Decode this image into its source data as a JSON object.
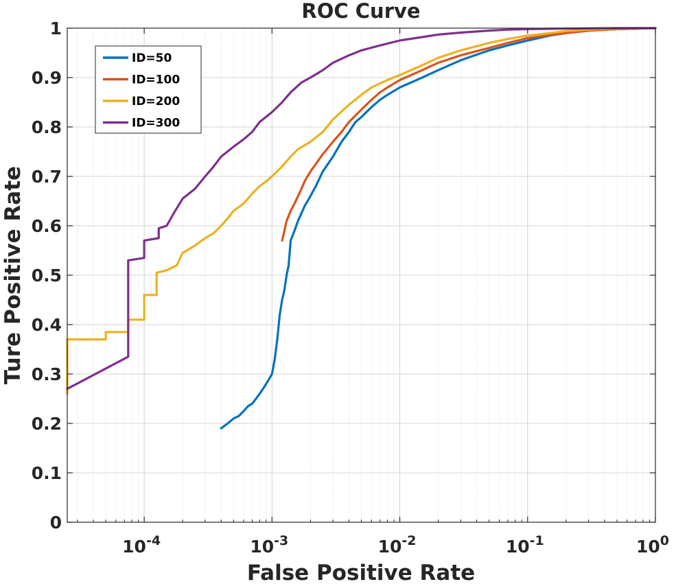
{
  "chart_data": {
    "type": "line",
    "title": "ROC Curve",
    "xlabel": "False Positive Rate",
    "ylabel": "Ture Positive Rate",
    "xscale": "log",
    "xlim": [
      2.5e-05,
      1
    ],
    "ylim": [
      0,
      1
    ],
    "grid": true,
    "minor_grid": true,
    "legend_position": "top-left",
    "x_ticks": [
      {
        "value": 0.0001,
        "base": "10",
        "exp": "-4"
      },
      {
        "value": 0.001,
        "base": "10",
        "exp": "-3"
      },
      {
        "value": 0.01,
        "base": "10",
        "exp": "-2"
      },
      {
        "value": 0.1,
        "base": "10",
        "exp": "-1"
      },
      {
        "value": 1,
        "base": "10",
        "exp": "0"
      }
    ],
    "y_ticks": [
      {
        "value": 0,
        "label": "0"
      },
      {
        "value": 0.1,
        "label": "0.1"
      },
      {
        "value": 0.2,
        "label": "0.2"
      },
      {
        "value": 0.3,
        "label": "0.3"
      },
      {
        "value": 0.4,
        "label": "0.4"
      },
      {
        "value": 0.5,
        "label": "0.5"
      },
      {
        "value": 0.6,
        "label": "0.6"
      },
      {
        "value": 0.7,
        "label": "0.7"
      },
      {
        "value": 0.8,
        "label": "0.8"
      },
      {
        "value": 0.9,
        "label": "0.9"
      },
      {
        "value": 1,
        "label": "1"
      }
    ],
    "series": [
      {
        "name": "ID=50",
        "color": "#0072BD",
        "x": [
          0.0004,
          0.00045,
          0.0005,
          0.00055,
          0.0006,
          0.00065,
          0.0007,
          0.00075,
          0.0008,
          0.00085,
          0.0009,
          0.00095,
          0.001,
          0.00105,
          0.0011,
          0.00115,
          0.0012,
          0.00125,
          0.0013,
          0.00135,
          0.0014,
          0.0015,
          0.0016,
          0.0018,
          0.002,
          0.0022,
          0.0025,
          0.003,
          0.0035,
          0.004,
          0.0045,
          0.005,
          0.006,
          0.007,
          0.008,
          0.01,
          0.015,
          0.02,
          0.03,
          0.05,
          0.07,
          0.1,
          0.15,
          0.2,
          0.3,
          0.5,
          0.7,
          1
        ],
        "y": [
          0.19,
          0.2,
          0.21,
          0.215,
          0.225,
          0.235,
          0.24,
          0.25,
          0.26,
          0.27,
          0.28,
          0.29,
          0.3,
          0.33,
          0.37,
          0.42,
          0.45,
          0.47,
          0.5,
          0.52,
          0.57,
          0.59,
          0.61,
          0.64,
          0.66,
          0.68,
          0.71,
          0.74,
          0.77,
          0.79,
          0.81,
          0.82,
          0.84,
          0.855,
          0.865,
          0.88,
          0.9,
          0.915,
          0.935,
          0.955,
          0.965,
          0.975,
          0.985,
          0.99,
          0.995,
          0.998,
          0.999,
          1.0
        ]
      },
      {
        "name": "ID=100",
        "color": "#D95319",
        "x": [
          0.0012,
          0.00125,
          0.0013,
          0.0014,
          0.0015,
          0.0016,
          0.0017,
          0.0018,
          0.002,
          0.0022,
          0.0025,
          0.003,
          0.0035,
          0.004,
          0.005,
          0.006,
          0.007,
          0.008,
          0.01,
          0.015,
          0.02,
          0.03,
          0.05,
          0.07,
          0.1,
          0.15,
          0.2,
          0.3,
          0.5,
          0.7,
          1
        ],
        "y": [
          0.57,
          0.59,
          0.61,
          0.63,
          0.645,
          0.66,
          0.675,
          0.69,
          0.71,
          0.725,
          0.745,
          0.77,
          0.79,
          0.81,
          0.835,
          0.855,
          0.87,
          0.88,
          0.895,
          0.915,
          0.93,
          0.945,
          0.96,
          0.97,
          0.98,
          0.986,
          0.99,
          0.995,
          0.998,
          0.999,
          1.0
        ]
      },
      {
        "name": "ID=200",
        "color": "#EDB120",
        "x": [
          2.5e-05,
          2.5e-05,
          5e-05,
          5e-05,
          7.5e-05,
          7.5e-05,
          0.0001,
          0.0001,
          0.000125,
          0.000125,
          0.00015,
          0.00018,
          0.0002,
          0.00025,
          0.0003,
          0.00035,
          0.0004,
          0.00045,
          0.0005,
          0.0006,
          0.0007,
          0.0008,
          0.0009,
          0.001,
          0.0012,
          0.0014,
          0.0016,
          0.002,
          0.0025,
          0.003,
          0.004,
          0.005,
          0.006,
          0.008,
          0.01,
          0.015,
          0.02,
          0.03,
          0.05,
          0.07,
          0.1,
          0.15,
          0.2,
          0.3,
          0.5,
          0.7,
          1
        ],
        "y": [
          0.26,
          0.37,
          0.37,
          0.385,
          0.385,
          0.41,
          0.41,
          0.46,
          0.46,
          0.505,
          0.51,
          0.52,
          0.545,
          0.56,
          0.575,
          0.585,
          0.6,
          0.615,
          0.63,
          0.645,
          0.665,
          0.68,
          0.69,
          0.7,
          0.72,
          0.74,
          0.755,
          0.77,
          0.79,
          0.815,
          0.845,
          0.865,
          0.88,
          0.895,
          0.905,
          0.925,
          0.94,
          0.955,
          0.97,
          0.978,
          0.985,
          0.99,
          0.994,
          0.997,
          0.999,
          1.0,
          1.0
        ]
      },
      {
        "name": "ID=300",
        "color": "#7E2F8E",
        "x": [
          2.5e-05,
          7.5e-05,
          7.5e-05,
          0.0001,
          0.0001,
          0.00013,
          0.00013,
          0.00015,
          0.00017,
          0.0002,
          0.00025,
          0.0003,
          0.00035,
          0.0004,
          0.0005,
          0.0006,
          0.0007,
          0.0008,
          0.001,
          0.0012,
          0.0014,
          0.0017,
          0.002,
          0.0025,
          0.003,
          0.004,
          0.005,
          0.007,
          0.01,
          0.015,
          0.02,
          0.03,
          0.05,
          0.07,
          0.1,
          0.2,
          0.5,
          1
        ],
        "y": [
          0.27,
          0.335,
          0.53,
          0.535,
          0.57,
          0.575,
          0.595,
          0.6,
          0.625,
          0.655,
          0.675,
          0.7,
          0.72,
          0.74,
          0.76,
          0.775,
          0.79,
          0.81,
          0.83,
          0.85,
          0.87,
          0.89,
          0.9,
          0.915,
          0.93,
          0.945,
          0.955,
          0.965,
          0.975,
          0.982,
          0.987,
          0.991,
          0.995,
          0.997,
          0.998,
          0.999,
          1.0,
          1.0
        ]
      }
    ]
  }
}
